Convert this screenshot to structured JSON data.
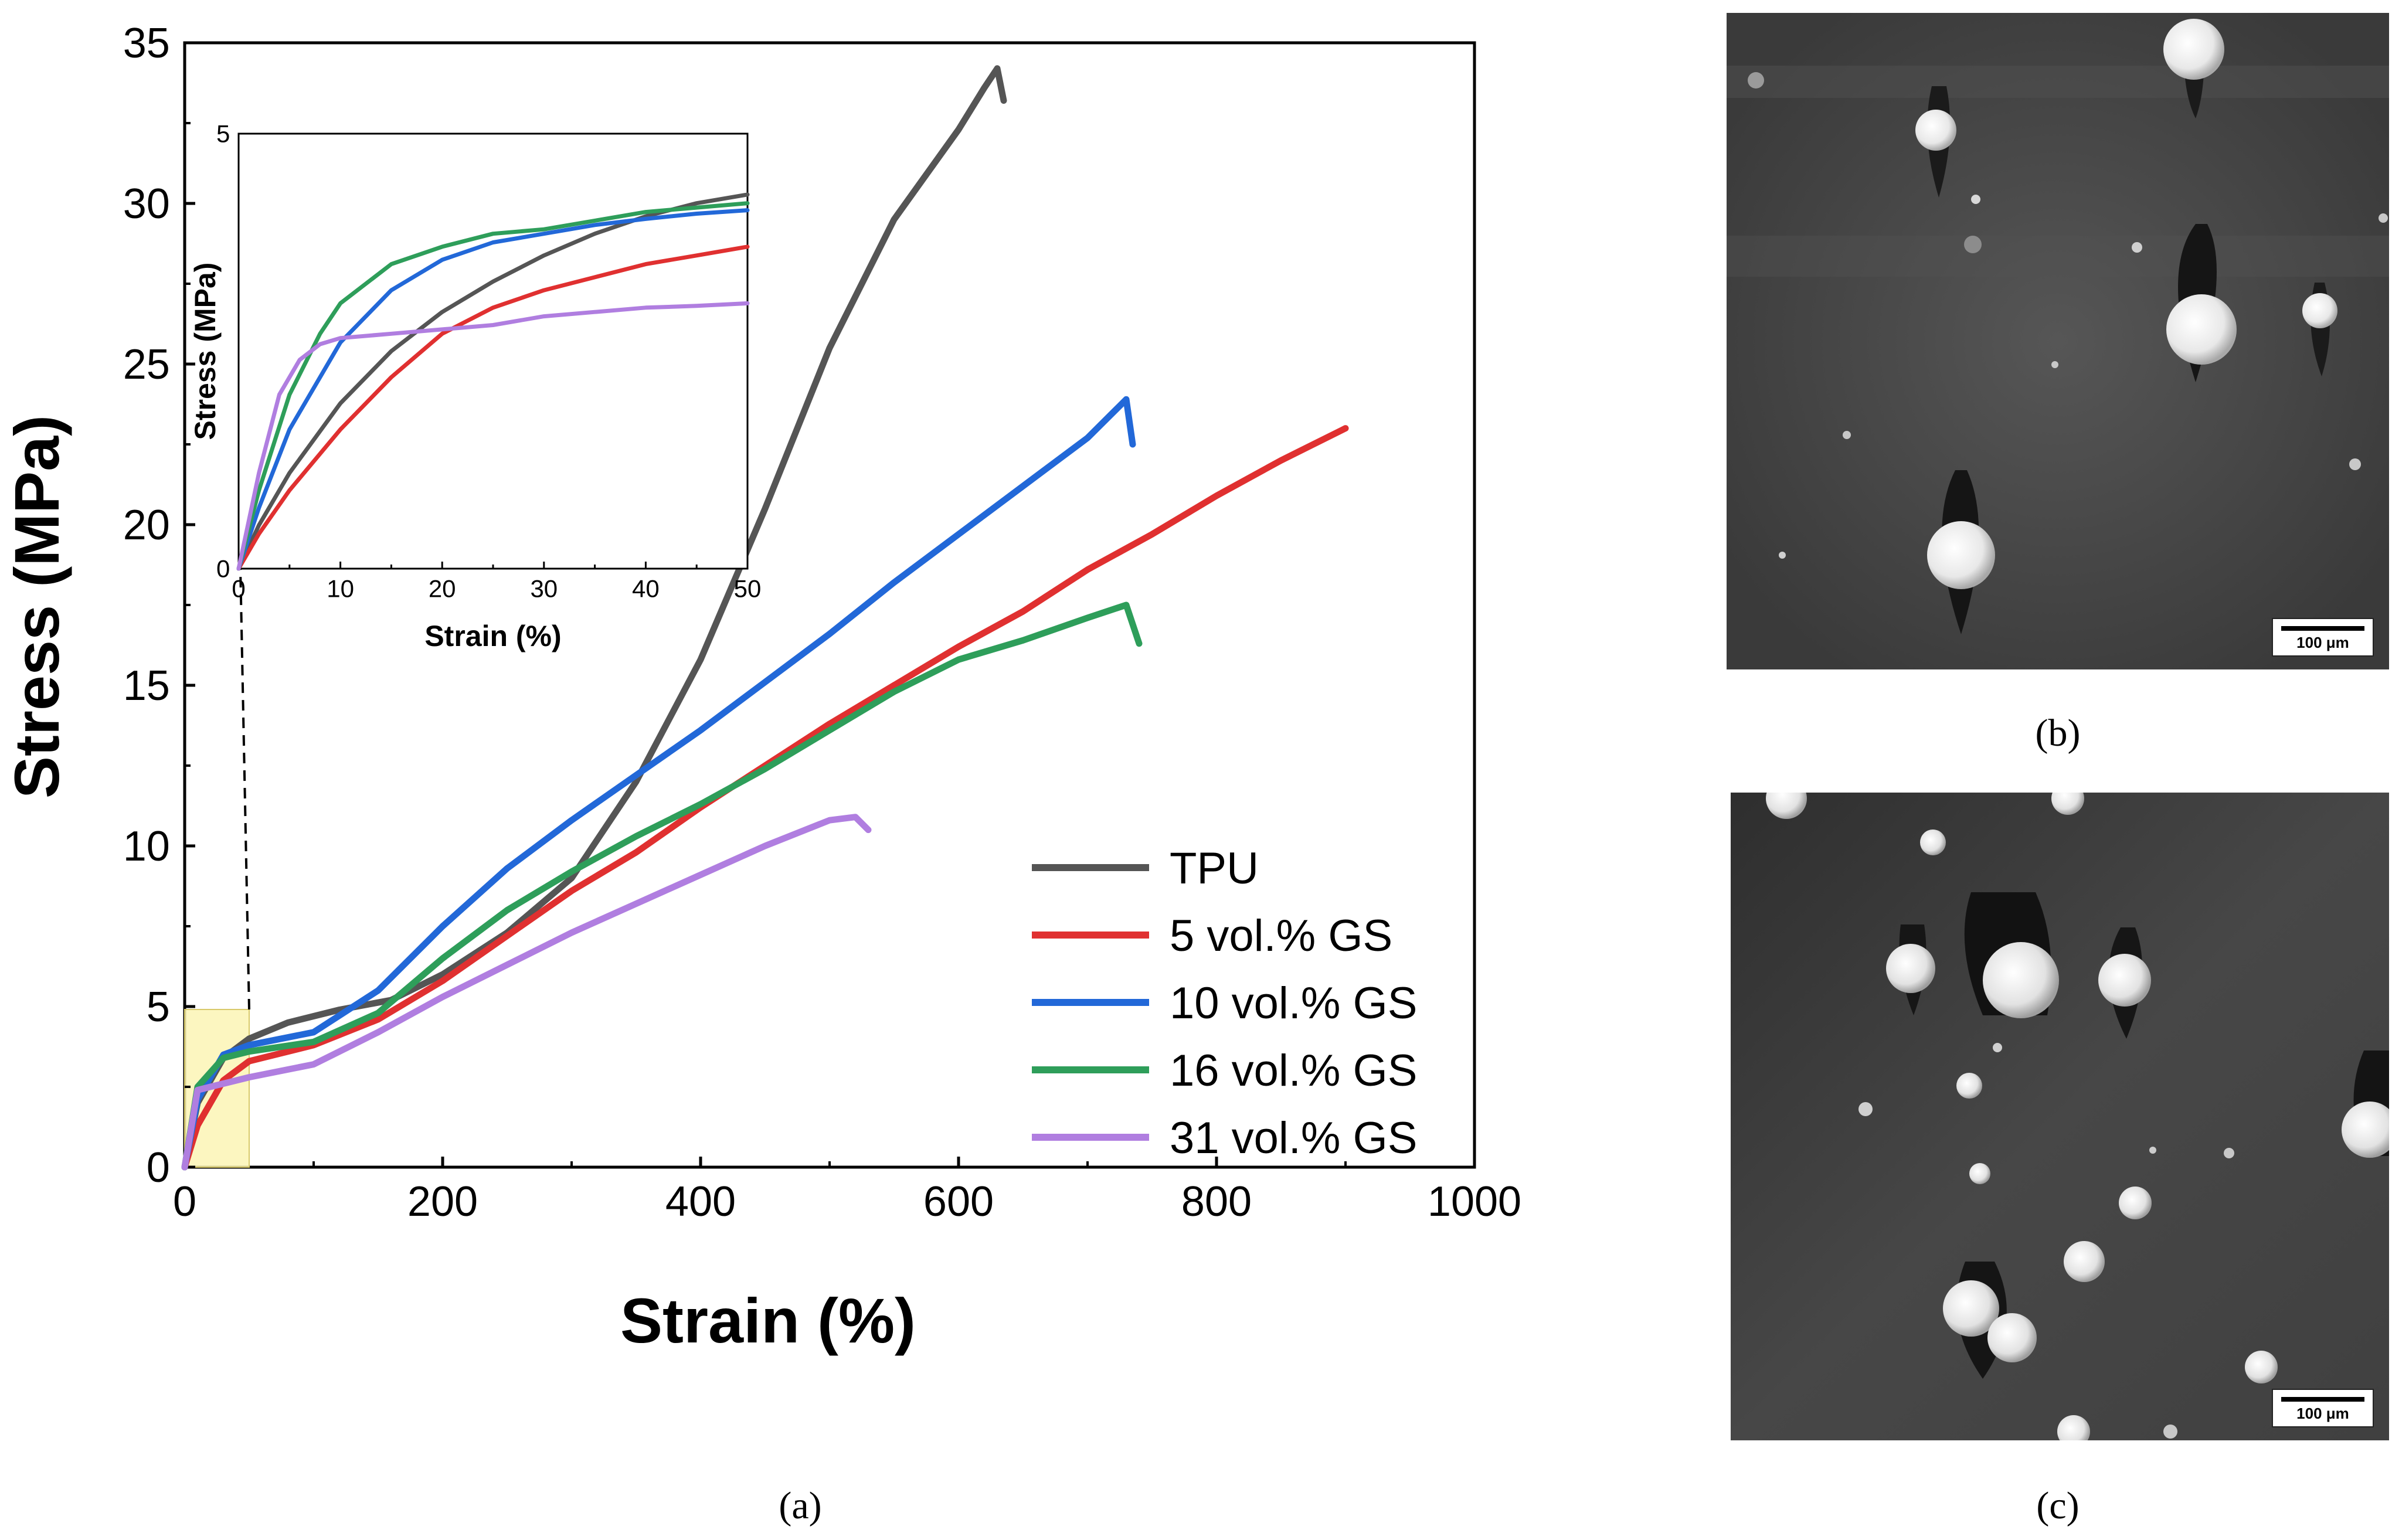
{
  "chart_data": {
    "type": "line",
    "xlabel": "Strain (%)",
    "ylabel": "Stress (MPa)",
    "xlim": [
      0,
      1000
    ],
    "ylim": [
      0,
      35
    ],
    "xticks": [
      "0",
      "200",
      "400",
      "600",
      "800",
      "1000"
    ],
    "yticks": [
      "0",
      "5",
      "10",
      "15",
      "20",
      "25",
      "30",
      "35"
    ],
    "legend_position": "bottom-right",
    "colors": {
      "TPU": "#555555",
      "5 vol.% GS": "#e03030",
      "10 vol.% GS": "#2268d8",
      "16 vol.% GS": "#2e9e5a",
      "31 vol.% GS": "#b07ee0"
    },
    "series": [
      {
        "name": "TPU",
        "x": [
          0,
          10,
          30,
          50,
          80,
          120,
          160,
          200,
          250,
          300,
          350,
          400,
          450,
          500,
          550,
          600,
          620,
          630,
          635
        ],
        "y": [
          0,
          2.0,
          3.4,
          4.0,
          4.5,
          4.9,
          5.2,
          6.0,
          7.3,
          9.0,
          12.0,
          15.8,
          20.5,
          25.5,
          29.5,
          32.3,
          33.6,
          34.2,
          33.2
        ]
      },
      {
        "name": "5 vol.% GS",
        "x": [
          0,
          10,
          30,
          50,
          100,
          150,
          200,
          250,
          300,
          350,
          400,
          450,
          500,
          550,
          600,
          650,
          700,
          750,
          800,
          850,
          900
        ],
        "y": [
          0,
          1.3,
          2.7,
          3.3,
          3.8,
          4.6,
          5.8,
          7.2,
          8.6,
          9.8,
          11.2,
          12.5,
          13.8,
          15.0,
          16.2,
          17.3,
          18.6,
          19.7,
          20.9,
          22.0,
          23.0
        ]
      },
      {
        "name": "10 vol.% GS",
        "x": [
          0,
          10,
          30,
          50,
          100,
          150,
          200,
          250,
          300,
          350,
          400,
          450,
          500,
          550,
          600,
          650,
          700,
          720,
          730,
          735
        ],
        "y": [
          0,
          2.1,
          3.5,
          3.8,
          4.2,
          5.5,
          7.5,
          9.3,
          10.8,
          12.2,
          13.6,
          15.1,
          16.6,
          18.2,
          19.7,
          21.2,
          22.7,
          23.5,
          23.9,
          22.5
        ]
      },
      {
        "name": "16 vol.% GS",
        "x": [
          0,
          10,
          30,
          50,
          100,
          150,
          200,
          250,
          300,
          350,
          400,
          450,
          500,
          550,
          600,
          650,
          700,
          730,
          740
        ],
        "y": [
          0,
          2.5,
          3.4,
          3.6,
          3.9,
          4.8,
          6.5,
          8.0,
          9.2,
          10.3,
          11.3,
          12.4,
          13.6,
          14.8,
          15.8,
          16.4,
          17.1,
          17.5,
          16.3
        ]
      },
      {
        "name": "31 vol.% GS",
        "x": [
          0,
          10,
          30,
          50,
          100,
          150,
          200,
          250,
          300,
          350,
          400,
          450,
          500,
          520,
          530
        ],
        "y": [
          0,
          2.4,
          2.6,
          2.8,
          3.2,
          4.2,
          5.3,
          6.3,
          7.3,
          8.2,
          9.1,
          10.0,
          10.8,
          10.9,
          10.5
        ]
      }
    ],
    "inset": {
      "xlabel": "Strain (%)",
      "ylabel": "Stress (MPa)",
      "xlim": [
        0,
        50
      ],
      "ylim": [
        0,
        5
      ],
      "xticks": [
        "0",
        "10",
        "20",
        "30",
        "40",
        "50"
      ],
      "yticks": [
        "0",
        "5"
      ],
      "series": [
        {
          "name": "TPU",
          "x": [
            0,
            2,
            5,
            10,
            15,
            20,
            25,
            30,
            35,
            40,
            45,
            50
          ],
          "y": [
            0,
            0.5,
            1.1,
            1.9,
            2.5,
            2.95,
            3.3,
            3.6,
            3.85,
            4.05,
            4.2,
            4.3
          ]
        },
        {
          "name": "5 vol.% GS",
          "x": [
            0,
            2,
            5,
            10,
            15,
            20,
            25,
            30,
            35,
            40,
            45,
            50
          ],
          "y": [
            0,
            0.4,
            0.9,
            1.6,
            2.2,
            2.7,
            3.0,
            3.2,
            3.35,
            3.5,
            3.6,
            3.7
          ]
        },
        {
          "name": "10 vol.% GS",
          "x": [
            0,
            2,
            5,
            10,
            15,
            20,
            25,
            30,
            35,
            40,
            45,
            50
          ],
          "y": [
            0,
            0.7,
            1.6,
            2.6,
            3.2,
            3.55,
            3.75,
            3.85,
            3.95,
            4.02,
            4.08,
            4.12
          ]
        },
        {
          "name": "16 vol.% GS",
          "x": [
            0,
            2,
            5,
            8,
            10,
            15,
            20,
            25,
            30,
            35,
            40,
            45,
            50
          ],
          "y": [
            0,
            0.9,
            2.0,
            2.7,
            3.05,
            3.5,
            3.7,
            3.85,
            3.9,
            4.0,
            4.1,
            4.15,
            4.2
          ]
        },
        {
          "name": "31 vol.% GS",
          "x": [
            0,
            2,
            4,
            6,
            8,
            10,
            15,
            20,
            25,
            30,
            35,
            40,
            45,
            50
          ],
          "y": [
            0,
            1.1,
            2.0,
            2.4,
            2.58,
            2.65,
            2.7,
            2.75,
            2.8,
            2.9,
            2.95,
            3.0,
            3.02,
            3.05
          ]
        }
      ]
    }
  },
  "panels": {
    "a": "(a)",
    "b": "(b)",
    "c": "(c)"
  },
  "sem_b": {
    "scale_label": "100 μm"
  },
  "sem_c": {
    "scale_label": "100 μm"
  }
}
